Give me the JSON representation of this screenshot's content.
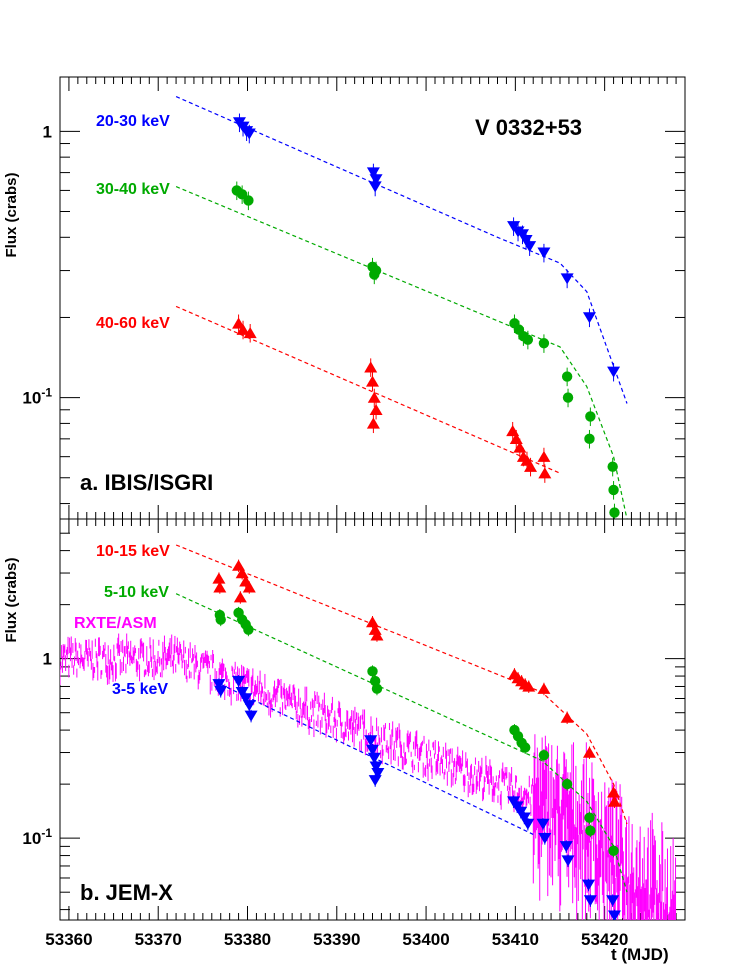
{
  "chart_data": [
    {
      "type": "scatter",
      "panel_label": "a. IBIS/ISGRI",
      "title": "V 0332+53",
      "ylabel": "Flux (crabs)",
      "yscale": "log",
      "ylim": [
        0.035,
        1.6
      ],
      "xlim": [
        53359,
        53429
      ],
      "x_ticks": [
        53360,
        53370,
        53380,
        53390,
        53400,
        53410,
        53420
      ],
      "y_ticks": [
        {
          "value": 1,
          "base": "1",
          "exp": ""
        },
        {
          "value": 0.1,
          "base": "10",
          "exp": "-1"
        }
      ],
      "series": [
        {
          "name": "20-30 keV",
          "color": "#0000ff",
          "marker": "triangle-down",
          "x": [
            53379.1,
            53379.5,
            53379.9,
            53380.2,
            53394.1,
            53394.4,
            53394.3,
            53409.8,
            53410.3,
            53410.8,
            53411.2,
            53411.6,
            53413.2,
            53415.8,
            53418.3,
            53421.0
          ],
          "y": [
            1.08,
            1.04,
            1.0,
            0.98,
            0.7,
            0.66,
            0.62,
            0.44,
            0.42,
            0.41,
            0.39,
            0.37,
            0.35,
            0.28,
            0.2,
            0.125
          ],
          "fit": {
            "x": [
              53372,
              53408,
              53415,
              53418,
              53422.5
            ],
            "y": [
              1.35,
              0.4,
              0.32,
              0.25,
              0.095
            ]
          }
        },
        {
          "name": "30-40 keV",
          "color": "#00aa00",
          "marker": "circle",
          "x": [
            53378.8,
            53379.4,
            53380.1,
            53394.0,
            53394.4,
            53394.2,
            53409.9,
            53410.4,
            53410.9,
            53411.4,
            53413.2,
            53415.8,
            53415.9,
            53418.4,
            53418.3,
            53420.9,
            53421.0,
            53421.1
          ],
          "y": [
            0.6,
            0.58,
            0.55,
            0.31,
            0.3,
            0.29,
            0.19,
            0.18,
            0.17,
            0.165,
            0.16,
            0.12,
            0.1,
            0.085,
            0.07,
            0.055,
            0.045,
            0.037
          ],
          "fit": {
            "x": [
              53372,
              53415,
              53418,
              53421,
              53422.5
            ],
            "y": [
              0.62,
              0.155,
              0.11,
              0.06,
              0.035
            ]
          }
        },
        {
          "name": "40-60 keV",
          "color": "#ff0000",
          "marker": "triangle-up",
          "x": [
            53379.0,
            53379.5,
            53380.3,
            53393.8,
            53394.0,
            53394.2,
            53394.4,
            53394.1,
            53409.7,
            53410.1,
            53410.5,
            53410.9,
            53411.3,
            53411.7,
            53413.2,
            53413.3
          ],
          "y": [
            0.19,
            0.18,
            0.175,
            0.13,
            0.115,
            0.1,
            0.09,
            0.08,
            0.075,
            0.07,
            0.065,
            0.06,
            0.058,
            0.055,
            0.06,
            0.052
          ],
          "fit": {
            "x": [
              53372,
              53415
            ],
            "y": [
              0.22,
              0.052
            ]
          }
        }
      ]
    },
    {
      "type": "scatter",
      "panel_label": "b. JEM-X",
      "ylabel": "Flux (crabs)",
      "xlabel": "t (MJD)",
      "yscale": "log",
      "ylim": [
        0.035,
        6.0
      ],
      "xlim": [
        53359,
        53429
      ],
      "x_ticks": [
        53360,
        53370,
        53380,
        53390,
        53400,
        53410,
        53420
      ],
      "y_ticks": [
        {
          "value": 1,
          "base": "1",
          "exp": ""
        },
        {
          "value": 0.1,
          "base": "10",
          "exp": "-1"
        }
      ],
      "series": [
        {
          "name": "10-15 keV",
          "color": "#ff0000",
          "marker": "triangle-up",
          "x": [
            53376.8,
            53376.9,
            53379.0,
            53379.4,
            53379.8,
            53380.2,
            53379.2,
            53394.0,
            53394.3,
            53394.5,
            53409.9,
            53410.3,
            53410.7,
            53411.1,
            53411.5,
            53413.2,
            53415.8,
            53418.3,
            53421.0,
            53421.1
          ],
          "y": [
            2.8,
            2.5,
            3.3,
            3.0,
            2.7,
            2.5,
            2.2,
            1.6,
            1.45,
            1.35,
            0.82,
            0.78,
            0.75,
            0.72,
            0.7,
            0.68,
            0.47,
            0.3,
            0.18,
            0.16
          ],
          "fit": {
            "x": [
              53372,
              53413,
              53418,
              53421,
              53422.5
            ],
            "y": [
              4.3,
              0.65,
              0.38,
              0.2,
              0.12
            ]
          }
        },
        {
          "name": "5-10 keV",
          "color": "#00aa00",
          "marker": "circle",
          "x": [
            53376.9,
            53377.0,
            53379.0,
            53379.4,
            53379.8,
            53380.1,
            53394.0,
            53394.3,
            53394.5,
            53409.9,
            53410.3,
            53410.7,
            53411.1,
            53413.2,
            53415.8,
            53418.3,
            53418.4,
            53421.0
          ],
          "y": [
            1.75,
            1.65,
            1.8,
            1.65,
            1.55,
            1.45,
            0.85,
            0.75,
            0.68,
            0.4,
            0.37,
            0.34,
            0.32,
            0.29,
            0.2,
            0.13,
            0.11,
            0.085
          ],
          "fit": {
            "x": [
              53372,
              53413,
              53418,
              53421,
              53422.5
            ],
            "y": [
              2.3,
              0.27,
              0.16,
              0.09,
              0.05
            ]
          }
        },
        {
          "name": "3-5 keV",
          "color": "#0000ff",
          "marker": "triangle-down",
          "x": [
            53376.8,
            53377.0,
            53379.0,
            53379.4,
            53379.8,
            53380.2,
            53380.4,
            53393.8,
            53394.0,
            53394.2,
            53394.4,
            53394.6,
            53394.3,
            53409.8,
            53410.2,
            53410.6,
            53411.0,
            53411.4,
            53413.1,
            53413.3,
            53415.7,
            53415.9,
            53418.2,
            53418.4,
            53420.9,
            53421.1
          ],
          "y": [
            0.72,
            0.66,
            0.75,
            0.65,
            0.6,
            0.55,
            0.48,
            0.35,
            0.31,
            0.28,
            0.25,
            0.23,
            0.21,
            0.16,
            0.15,
            0.14,
            0.13,
            0.12,
            0.12,
            0.1,
            0.09,
            0.075,
            0.055,
            0.045,
            0.045,
            0.037
          ],
          "fit": {
            "x": [
              53377,
              53412
            ],
            "y": [
              0.72,
              0.105
            ]
          }
        },
        {
          "name": "RXTE/ASM",
          "color": "#ff00ff",
          "marker": "errorbar",
          "x_range": [
            53359,
            53428
          ],
          "trend_x": [
            53359,
            53372,
            53390,
            53408,
            53413,
            53418,
            53422,
            53428
          ],
          "trend_y": [
            1.0,
            1.0,
            0.45,
            0.2,
            0.16,
            0.12,
            0.07,
            0.04
          ]
        }
      ]
    }
  ]
}
